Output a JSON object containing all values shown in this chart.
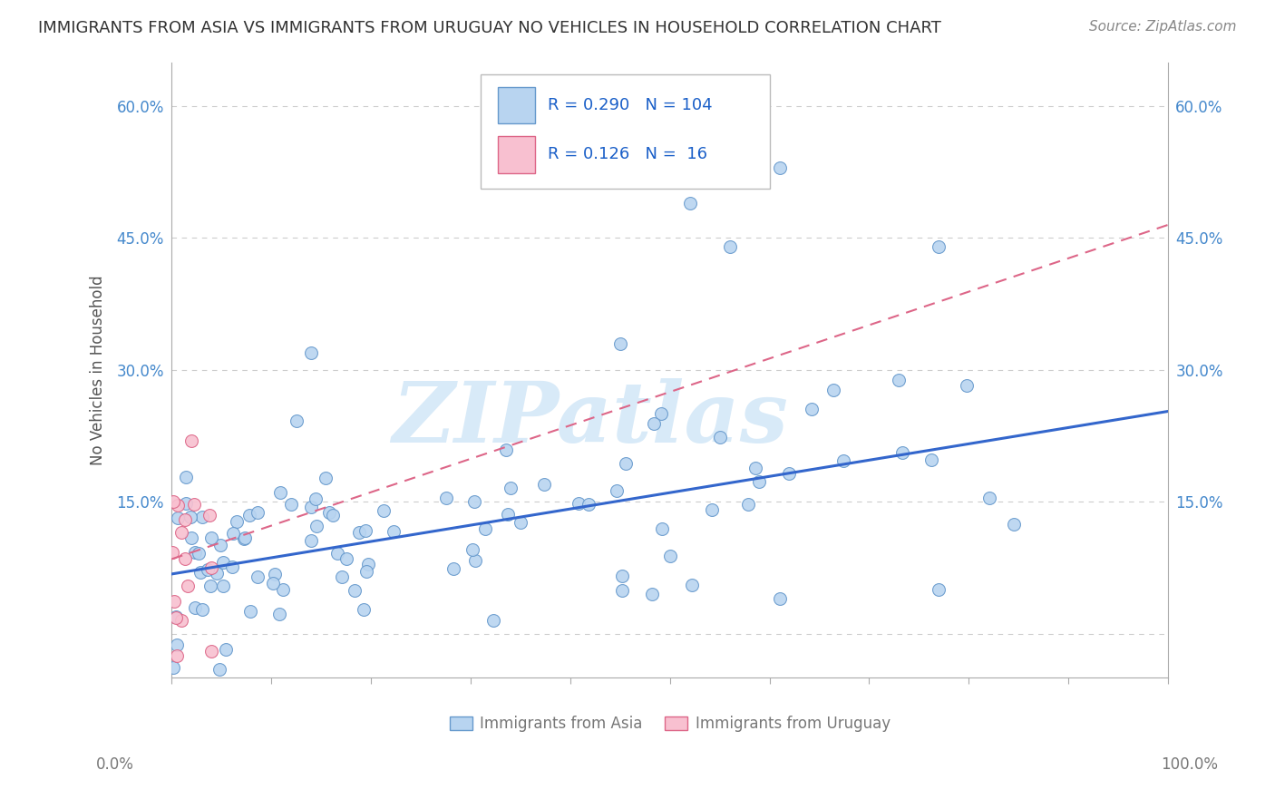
{
  "title": "IMMIGRANTS FROM ASIA VS IMMIGRANTS FROM URUGUAY NO VEHICLES IN HOUSEHOLD CORRELATION CHART",
  "source": "Source: ZipAtlas.com",
  "ylabel": "No Vehicles in Household",
  "yticks": [
    0.0,
    0.15,
    0.3,
    0.45,
    0.6
  ],
  "ytick_labels": [
    "",
    "15.0%",
    "30.0%",
    "45.0%",
    "60.0%"
  ],
  "xlim": [
    0.0,
    1.0
  ],
  "ylim": [
    -0.05,
    0.65
  ],
  "series_asia": {
    "label": "Immigrants from Asia",
    "R": 0.29,
    "N": 104,
    "color": "#b8d4f0",
    "edge_color": "#6699cc",
    "trend_color": "#3366cc",
    "trend_intercept": 0.068,
    "trend_slope": 0.185
  },
  "series_uruguay": {
    "label": "Immigrants from Uruguay",
    "R": 0.126,
    "N": 16,
    "color": "#f8c0d0",
    "edge_color": "#dd6688",
    "trend_color": "#dd6688",
    "trend_intercept": 0.085,
    "trend_slope": 0.38
  },
  "watermark_text": "ZIPatlas",
  "watermark_color": "#d8eaf8",
  "legend_R_color": "#1a5fc8",
  "legend_N_color": "#1a5fc8",
  "legend_label_color": "#222222",
  "background_color": "#ffffff",
  "grid_color": "#cccccc",
  "axis_color": "#aaaaaa",
  "tick_label_color": "#4488cc",
  "bottom_label_color": "#777777"
}
